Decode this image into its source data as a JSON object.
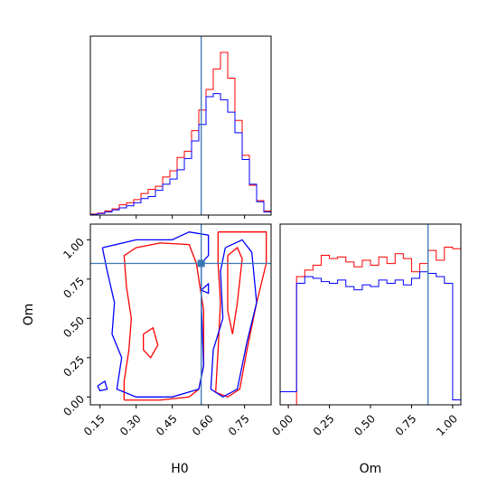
{
  "chart_data": {
    "type": "corner",
    "parameters": [
      "H0",
      "Om"
    ],
    "truth": {
      "H0": 0.57,
      "Om": 0.85
    },
    "series_colors": {
      "red": "#ff0000",
      "blue": "#0000ff"
    },
    "truth_color": "#3a78b5",
    "panels": [
      {
        "id": "hist-H0",
        "type": "histogram",
        "xlim": [
          0.11,
          0.86
        ],
        "bin_edges": [
          0.11,
          0.14,
          0.17,
          0.2,
          0.23,
          0.26,
          0.29,
          0.32,
          0.35,
          0.38,
          0.41,
          0.44,
          0.47,
          0.5,
          0.53,
          0.56,
          0.59,
          0.62,
          0.65,
          0.68,
          0.71,
          0.74,
          0.77,
          0.8,
          0.83,
          0.86
        ],
        "series": [
          {
            "color": "red",
            "values": [
              1,
              2,
              4,
              6,
              10,
              12,
              15,
              21,
              25,
              28,
              37,
              43,
              56,
              62,
              82,
              102,
              122,
              142,
              158,
              133,
              92,
              58,
              29,
              14,
              4
            ]
          },
          {
            "color": "blue",
            "values": [
              0.5,
              1.5,
              3,
              5,
              7,
              9,
              12,
              16,
              18,
              24,
              30,
              35,
              44,
              55,
              72,
              88,
              115,
              118,
              112,
              100,
              80,
              54,
              30,
              13,
              3
            ]
          }
        ]
      },
      {
        "id": "hist-Om",
        "type": "histogram",
        "xlim": [
          -0.05,
          1.05
        ],
        "bin_edges": [
          -0.05,
          0.0,
          0.05,
          0.1,
          0.15,
          0.2,
          0.25,
          0.3,
          0.35,
          0.4,
          0.45,
          0.5,
          0.55,
          0.6,
          0.65,
          0.7,
          0.75,
          0.8,
          0.85,
          0.9,
          0.95,
          1.0,
          1.05
        ],
        "series": [
          {
            "color": "red",
            "values": [
              0,
              0,
              0.78,
              0.82,
              0.85,
              0.91,
              0.89,
              0.9,
              0.87,
              0.84,
              0.88,
              0.85,
              0.9,
              0.86,
              0.92,
              0.89,
              0.81,
              0.86,
              0.94,
              0.88,
              0.96,
              0.95,
              0.02
            ]
          },
          {
            "color": "blue",
            "values": [
              0.08,
              0.08,
              0.74,
              0.78,
              0.77,
              0.75,
              0.74,
              0.76,
              0.72,
              0.7,
              0.73,
              0.72,
              0.76,
              0.74,
              0.76,
              0.73,
              0.77,
              0.81,
              0.8,
              0.78,
              0.74,
              0.03,
              0.03
            ]
          }
        ]
      },
      {
        "id": "contour-H0-Om",
        "type": "contour",
        "xlim": [
          0.11,
          0.86
        ],
        "ylim": [
          -0.05,
          1.1
        ],
        "series": [
          {
            "color": "red",
            "paths": [
              [
                [
                  0.25,
                  -0.02
                ],
                [
                  0.4,
                  -0.02
                ],
                [
                  0.52,
                  0.0
                ],
                [
                  0.56,
                  0.05
                ],
                [
                  0.58,
                  0.2
                ],
                [
                  0.58,
                  0.55
                ],
                [
                  0.55,
                  0.85
                ],
                [
                  0.52,
                  0.97
                ],
                [
                  0.4,
                  0.98
                ],
                [
                  0.3,
                  0.95
                ],
                [
                  0.25,
                  0.9
                ],
                [
                  0.26,
                  0.7
                ],
                [
                  0.28,
                  0.5
                ],
                [
                  0.27,
                  0.3
                ],
                [
                  0.25,
                  0.1
                ],
                [
                  0.25,
                  -0.02
                ]
              ],
              [
                [
                  0.64,
                  1.05
                ],
                [
                  0.84,
                  1.05
                ],
                [
                  0.84,
                  0.85
                ],
                [
                  0.8,
                  0.6
                ],
                [
                  0.76,
                  0.3
                ],
                [
                  0.73,
                  0.05
                ],
                [
                  0.68,
                  0.0
                ],
                [
                  0.63,
                  0.03
                ],
                [
                  0.64,
                  0.3
                ],
                [
                  0.65,
                  0.6
                ],
                [
                  0.64,
                  0.85
                ],
                [
                  0.64,
                  1.05
                ]
              ],
              [
                [
                  0.68,
                  0.9
                ],
                [
                  0.72,
                  0.95
                ],
                [
                  0.74,
                  0.88
                ],
                [
                  0.72,
                  0.6
                ],
                [
                  0.7,
                  0.4
                ],
                [
                  0.68,
                  0.55
                ],
                [
                  0.68,
                  0.9
                ]
              ],
              [
                [
                  0.33,
                  0.4
                ],
                [
                  0.37,
                  0.44
                ],
                [
                  0.39,
                  0.33
                ],
                [
                  0.36,
                  0.25
                ],
                [
                  0.33,
                  0.3
                ],
                [
                  0.33,
                  0.4
                ]
              ]
            ]
          },
          {
            "color": "blue",
            "paths": [
              [
                [
                  0.16,
                  0.95
                ],
                [
                  0.3,
                  1.0
                ],
                [
                  0.45,
                  1.0
                ],
                [
                  0.52,
                  1.05
                ],
                [
                  0.6,
                  1.03
                ],
                [
                  0.6,
                  0.9
                ],
                [
                  0.57,
                  0.85
                ],
                [
                  0.57,
                  0.6
                ],
                [
                  0.58,
                  0.2
                ],
                [
                  0.56,
                  0.05
                ],
                [
                  0.45,
                  0.0
                ],
                [
                  0.3,
                  0.0
                ],
                [
                  0.22,
                  0.05
                ],
                [
                  0.24,
                  0.25
                ],
                [
                  0.2,
                  0.4
                ],
                [
                  0.21,
                  0.6
                ],
                [
                  0.18,
                  0.8
                ],
                [
                  0.16,
                  0.95
                ]
              ],
              [
                [
                  0.67,
                  0.95
                ],
                [
                  0.74,
                  1.0
                ],
                [
                  0.78,
                  0.92
                ],
                [
                  0.8,
                  0.6
                ],
                [
                  0.76,
                  0.35
                ],
                [
                  0.72,
                  0.05
                ],
                [
                  0.66,
                  0.0
                ],
                [
                  0.61,
                  0.05
                ],
                [
                  0.62,
                  0.3
                ],
                [
                  0.66,
                  0.5
                ],
                [
                  0.65,
                  0.8
                ],
                [
                  0.67,
                  0.95
                ]
              ],
              [
                [
                  0.14,
                  0.07
                ],
                [
                  0.17,
                  0.1
                ],
                [
                  0.18,
                  0.05
                ],
                [
                  0.15,
                  0.04
                ],
                [
                  0.14,
                  0.07
                ]
              ],
              [
                [
                  0.57,
                  0.68
                ],
                [
                  0.6,
                  0.72
                ],
                [
                  0.6,
                  0.66
                ],
                [
                  0.57,
                  0.68
                ]
              ]
            ]
          }
        ]
      }
    ],
    "xticks": {
      "H0": [
        "0.15",
        "0.30",
        "0.45",
        "0.60",
        "0.75"
      ],
      "Om": [
        "0.00",
        "0.25",
        "0.50",
        "0.75",
        "1.00"
      ]
    },
    "yticks": {
      "Om": [
        "0.00",
        "0.25",
        "0.50",
        "0.75",
        "1.00"
      ]
    },
    "xlabels": {
      "H0": "H0",
      "Om": "Om"
    },
    "ylabel": "Om"
  }
}
